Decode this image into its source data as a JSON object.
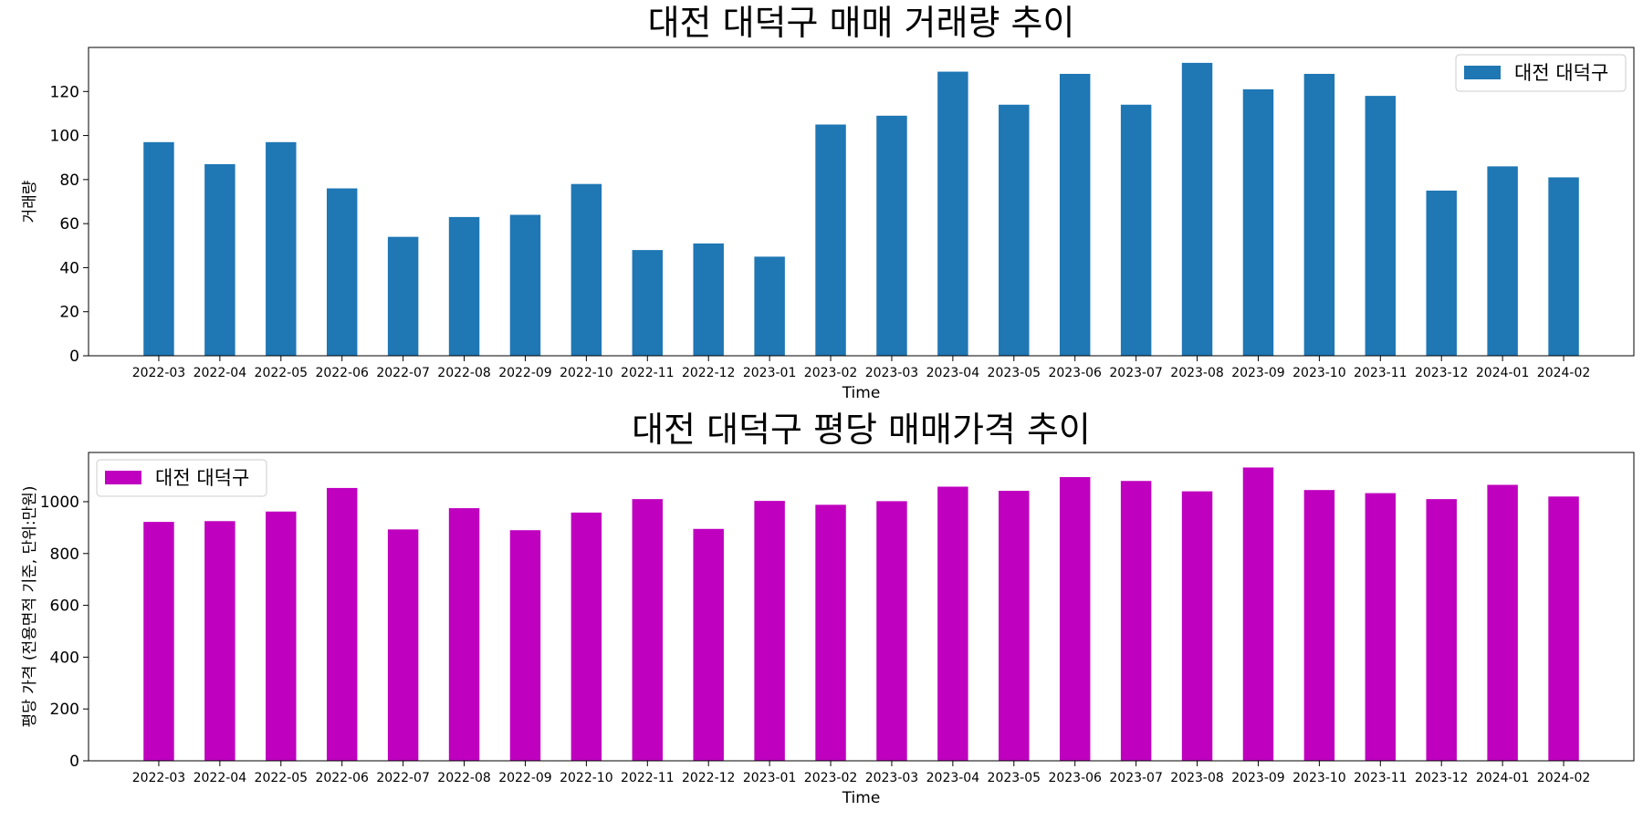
{
  "chart_data": [
    {
      "type": "bar",
      "title": "대전 대덕구 매매 거래량 추이",
      "xlabel": "Time",
      "ylabel": "거래량",
      "legend": "top-right",
      "grid": false,
      "ylim": [
        0,
        140
      ],
      "yticks": [
        0,
        20,
        40,
        60,
        80,
        100,
        120
      ],
      "color": "#1f77b4",
      "categories": [
        "2022-03",
        "2022-04",
        "2022-05",
        "2022-06",
        "2022-07",
        "2022-08",
        "2022-09",
        "2022-10",
        "2022-11",
        "2022-12",
        "2023-01",
        "2023-02",
        "2023-03",
        "2023-04",
        "2023-05",
        "2023-06",
        "2023-07",
        "2023-08",
        "2023-09",
        "2023-10",
        "2023-11",
        "2023-12",
        "2024-01",
        "2024-02"
      ],
      "series": [
        {
          "name": "대전 대덕구",
          "values": [
            97,
            87,
            97,
            76,
            54,
            63,
            64,
            78,
            48,
            51,
            45,
            105,
            109,
            129,
            114,
            128,
            114,
            133,
            121,
            128,
            118,
            75,
            86,
            81
          ]
        }
      ]
    },
    {
      "type": "bar",
      "title": "대전 대덕구 평당 매매가격 추이",
      "xlabel": "Time",
      "ylabel": "평당 가격 (전용면적 기준, 단위:만원)",
      "legend": "top-left",
      "grid": false,
      "ylim": [
        0,
        1190
      ],
      "yticks": [
        0,
        200,
        400,
        600,
        800,
        1000
      ],
      "color": "#bf00bf",
      "categories": [
        "2022-03",
        "2022-04",
        "2022-05",
        "2022-06",
        "2022-07",
        "2022-08",
        "2022-09",
        "2022-10",
        "2022-11",
        "2022-12",
        "2023-01",
        "2023-02",
        "2023-03",
        "2023-04",
        "2023-05",
        "2023-06",
        "2023-07",
        "2023-08",
        "2023-09",
        "2023-10",
        "2023-11",
        "2023-12",
        "2024-01",
        "2024-02"
      ],
      "series": [
        {
          "name": "대전 대덕구",
          "values": [
            922,
            925,
            962,
            1053,
            893,
            975,
            890,
            958,
            1010,
            895,
            1003,
            988,
            1002,
            1058,
            1042,
            1095,
            1080,
            1040,
            1132,
            1045,
            1033,
            1010,
            1065,
            1020
          ]
        }
      ]
    }
  ]
}
